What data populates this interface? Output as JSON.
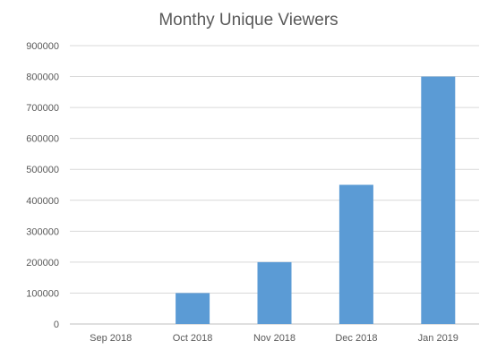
{
  "chart_data": {
    "type": "bar",
    "title": "Monthy Unique Viewers",
    "categories": [
      "Sep 2018",
      "Oct 2018",
      "Nov 2018",
      "Dec 2018",
      "Jan 2019"
    ],
    "values": [
      0,
      100000,
      200000,
      450000,
      800000
    ],
    "ylim": [
      0,
      900000
    ],
    "yticks": [
      "0",
      "100000",
      "200000",
      "300000",
      "400000",
      "500000",
      "600000",
      "700000",
      "800000",
      "900000"
    ],
    "grid": true,
    "legend": "none",
    "bar_color": "#5b9bd5",
    "grid_color": "#d9d9d9"
  }
}
